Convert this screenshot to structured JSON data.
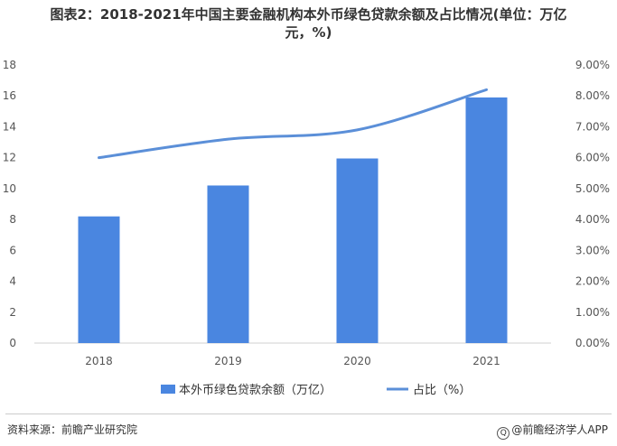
{
  "chart_data": {
    "type": "bar+line",
    "title_line1": "图表2：2018-2021年中国主要金融机构本外币绿色贷款余额及占比情况(单位：万亿",
    "title_line2": "元，%)",
    "categories": [
      "2018",
      "2019",
      "2020",
      "2021"
    ],
    "series": [
      {
        "name": "本外币绿色贷款余额（万亿）",
        "type": "bar",
        "axis": "left",
        "values": [
          8.2,
          10.2,
          11.95,
          15.9
        ],
        "color": "#4a86e0"
      },
      {
        "name": "占比（%）",
        "type": "line",
        "axis": "right",
        "values": [
          6.0,
          6.6,
          6.9,
          8.2
        ],
        "color": "#5b8fd8"
      }
    ],
    "y_left": {
      "range": [
        0,
        18
      ],
      "ticks": [
        "0",
        "2",
        "4",
        "6",
        "8",
        "10",
        "12",
        "14",
        "16",
        "18"
      ]
    },
    "y_right": {
      "range": [
        0,
        9
      ],
      "ticks": [
        "0.00%",
        "1.00%",
        "2.00%",
        "3.00%",
        "4.00%",
        "5.00%",
        "6.00%",
        "7.00%",
        "8.00%",
        "9.00%"
      ]
    },
    "grid": false,
    "legend_position": "bottom"
  },
  "footer": {
    "source": "资料来源：前瞻产业研究院",
    "logo_glyph": "Q",
    "brand": "@前瞻经济学人APP"
  },
  "watermark": "前瞻产业研究院"
}
